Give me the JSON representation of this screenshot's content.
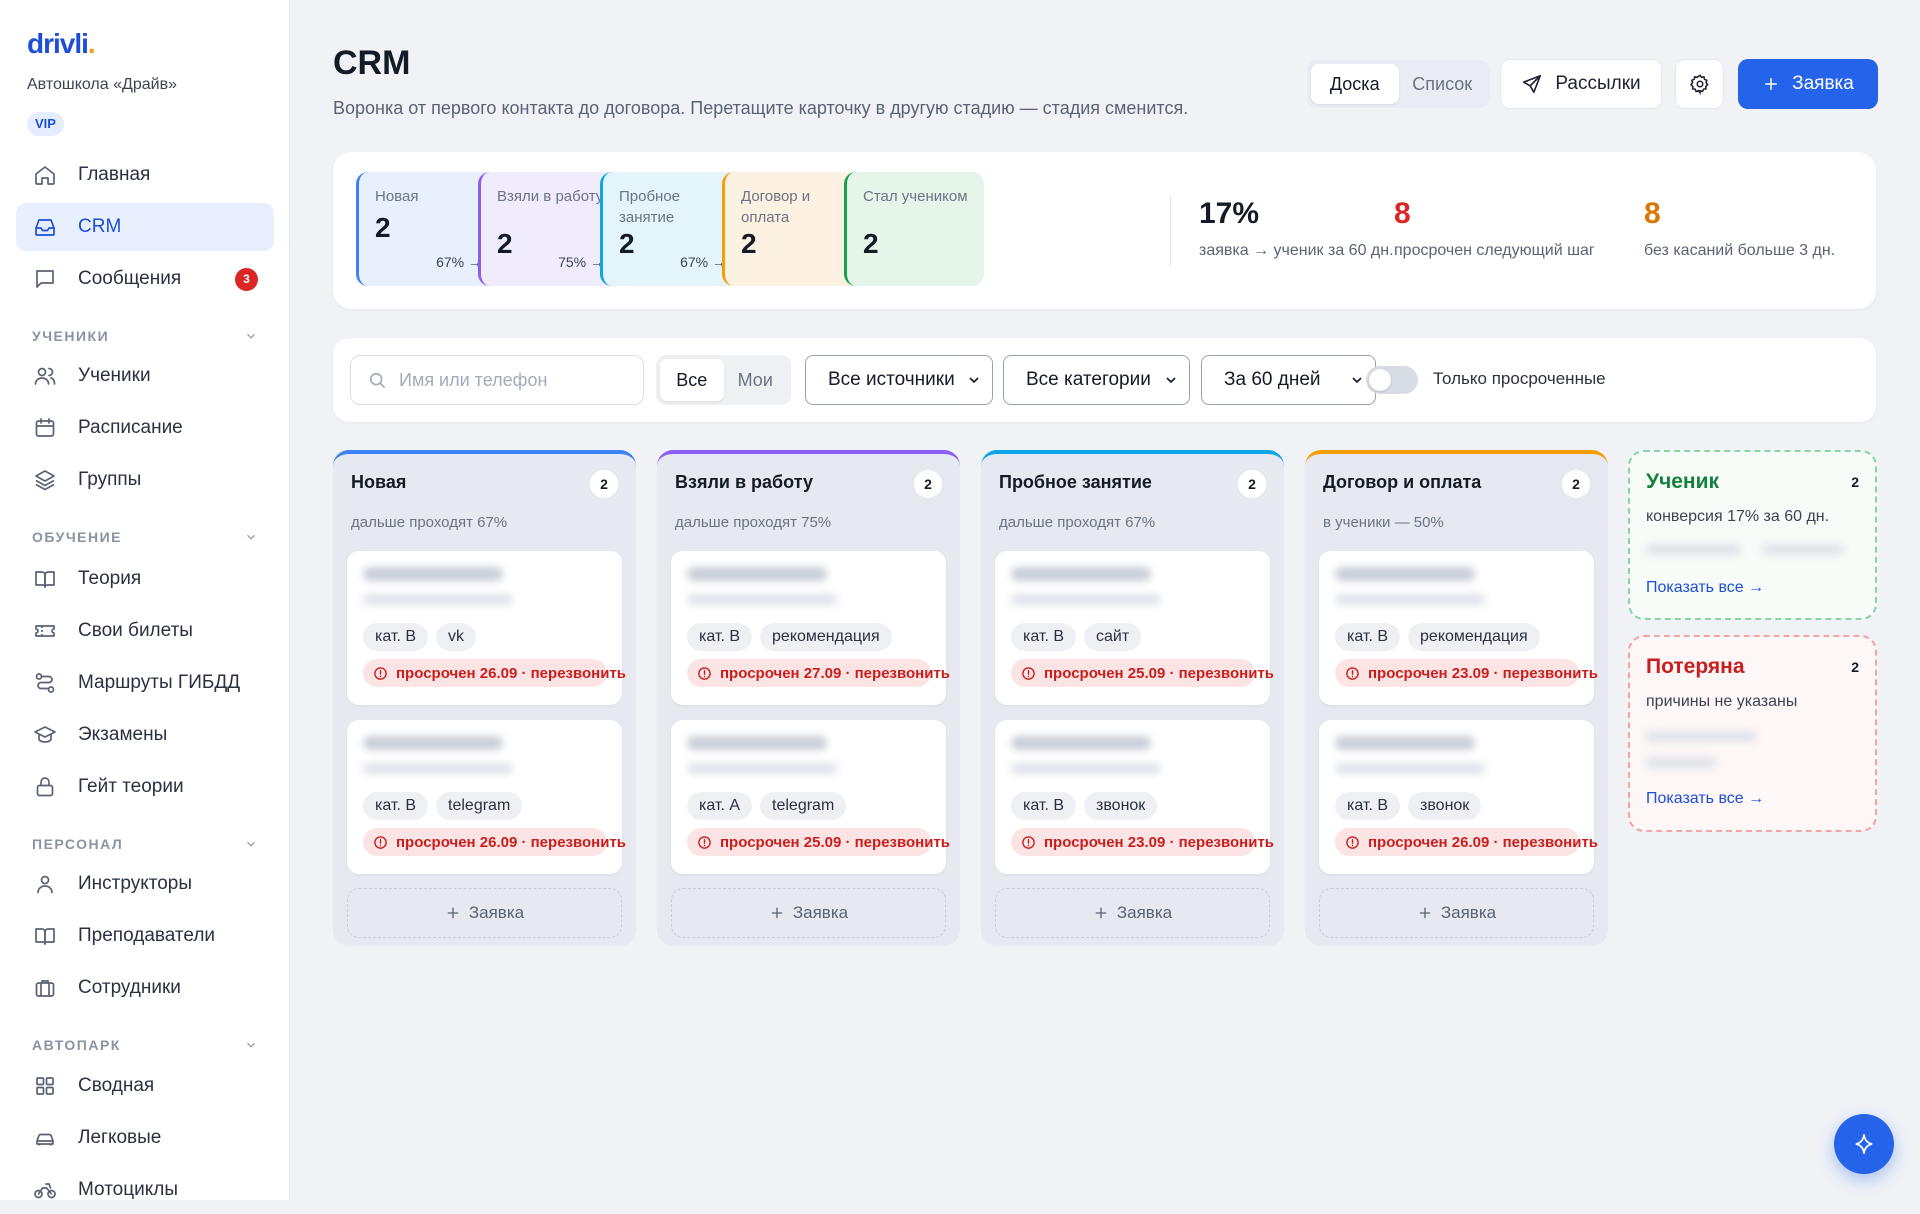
{
  "brand": {
    "logo_text": "drivli",
    "logo_dot": ".",
    "school": "Автошкола «Драйв»",
    "plan": "VIP"
  },
  "nav": {
    "home": "Главная",
    "crm": "CRM",
    "messages": "Сообщения",
    "messages_badge": "3",
    "section_students": "УЧЕНИКИ",
    "students": "Ученики",
    "schedule": "Расписание",
    "groups": "Группы",
    "section_training": "ОБУЧЕНИЕ",
    "theory": "Теория",
    "tickets": "Свои билеты",
    "routes": "Маршруты ГИБДД",
    "exams": "Экзамены",
    "theory_gate": "Гейт теории",
    "section_staff": "ПЕРСОНАЛ",
    "instructors": "Инструкторы",
    "teachers": "Преподаватели",
    "employees": "Сотрудники",
    "section_fleet": "АВТОПАРК",
    "summary": "Сводная",
    "cars": "Легковые",
    "motorcycles": "Мотоциклы"
  },
  "header": {
    "title": "CRM",
    "subtitle": "Воронка от первого контакта до договора. Перетащите карточку в другую стадию — стадия сменится.",
    "view_board": "Доска",
    "view_list": "Список",
    "mailings": "Рассылки",
    "new_lead": "Заявка"
  },
  "stats": {
    "stages": [
      {
        "label": "Новая",
        "count": "2",
        "pct": "67% →",
        "color": "#3b82f6",
        "bg": "#e8f0fe"
      },
      {
        "label": "Взяли в работу",
        "count": "2",
        "pct": "75% →",
        "color": "#8b5cf6",
        "bg": "#f1ecfd"
      },
      {
        "label": "Пробное занятие",
        "count": "2",
        "pct": "67% →",
        "color": "#0ea5e9",
        "bg": "#e3f4fb"
      },
      {
        "label": "Договор и оплата",
        "count": "2",
        "pct": "",
        "color": "#f59e0b",
        "bg": "#fdf1e1"
      },
      {
        "label": "Стал учеником",
        "count": "2",
        "pct": "",
        "color": "#16a34a",
        "bg": "#e5f5ea"
      }
    ],
    "conversion_value": "17%",
    "conversion_label": "заявка → ученик за 60 дн.",
    "overdue_value": "8",
    "overdue_label": "просрочен следующий шаг",
    "stale_value": "8",
    "stale_label": "без касаний больше 3 дн."
  },
  "filters": {
    "search_placeholder": "Имя или телефон",
    "scope_all": "Все",
    "scope_mine": "Мои",
    "source": "Все источники",
    "category": "Все категории",
    "period": "За 60 дней",
    "only_overdue": "Только просроченные"
  },
  "columns": [
    {
      "title": "Новая",
      "count": "2",
      "sub": "дальше проходят 67%",
      "color": "#3b82f6",
      "cards": [
        {
          "cat": "кат. B",
          "source": "vk",
          "overdue": "просрочен 26.09 · перезвонить"
        },
        {
          "cat": "кат. B",
          "source": "telegram",
          "overdue": "просрочен 26.09 · перезвонить"
        }
      ]
    },
    {
      "title": "Взяли в работу",
      "count": "2",
      "sub": "дальше проходят 75%",
      "color": "#8b5cf6",
      "cards": [
        {
          "cat": "кат. B",
          "source": "рекомендация",
          "overdue": "просрочен 27.09 · перезвонить"
        },
        {
          "cat": "кат. A",
          "source": "telegram",
          "overdue": "просрочен 25.09 · перезвонить"
        }
      ]
    },
    {
      "title": "Пробное занятие",
      "count": "2",
      "sub": "дальше проходят 67%",
      "color": "#0ea5e9",
      "cards": [
        {
          "cat": "кат. B",
          "source": "сайт",
          "overdue": "просрочен 25.09 · перезвонить"
        },
        {
          "cat": "кат. B",
          "source": "звонок",
          "overdue": "просрочен 23.09 · перезвонить"
        }
      ]
    },
    {
      "title": "Договор и оплата",
      "count": "2",
      "sub": "в ученики — 50%",
      "color": "#f59e0b",
      "cards": [
        {
          "cat": "кат. B",
          "source": "рекомендация",
          "overdue": "просрочен 23.09 · перезвонить"
        },
        {
          "cat": "кат. B",
          "source": "звонок",
          "overdue": "просрочен 26.09 · перезвонить"
        }
      ]
    }
  ],
  "column_add_label": "Заявка",
  "student_card": {
    "title": "Ученик",
    "count": "2",
    "sub": "конверсия 17% за 60 дн.",
    "link": "Показать все →",
    "color": "#15803d",
    "border": "#86d5a2"
  },
  "lost_card": {
    "title": "Потеряна",
    "count": "2",
    "sub": "причины не указаны",
    "link": "Показать все →",
    "color": "#c81e1e",
    "border": "#f2a3a3"
  },
  "icons": [
    "home-icon",
    "inbox-icon",
    "message-icon",
    "users-icon",
    "calendar-icon",
    "layers-icon",
    "book-icon",
    "ticket-icon",
    "route-icon",
    "graduation-icon",
    "lock-icon",
    "user-icon",
    "book-open-icon",
    "briefcase-icon",
    "grid-icon",
    "car-icon",
    "motorcycle-icon",
    "send-icon",
    "gear-icon",
    "plus-icon",
    "search-icon",
    "chevron-down-icon",
    "alert-circle-icon",
    "sparkle-icon"
  ],
  "colors": {
    "accent": "#2563eb",
    "danger": "#dc2626",
    "success": "#16a34a",
    "warning": "#f59e0b"
  }
}
